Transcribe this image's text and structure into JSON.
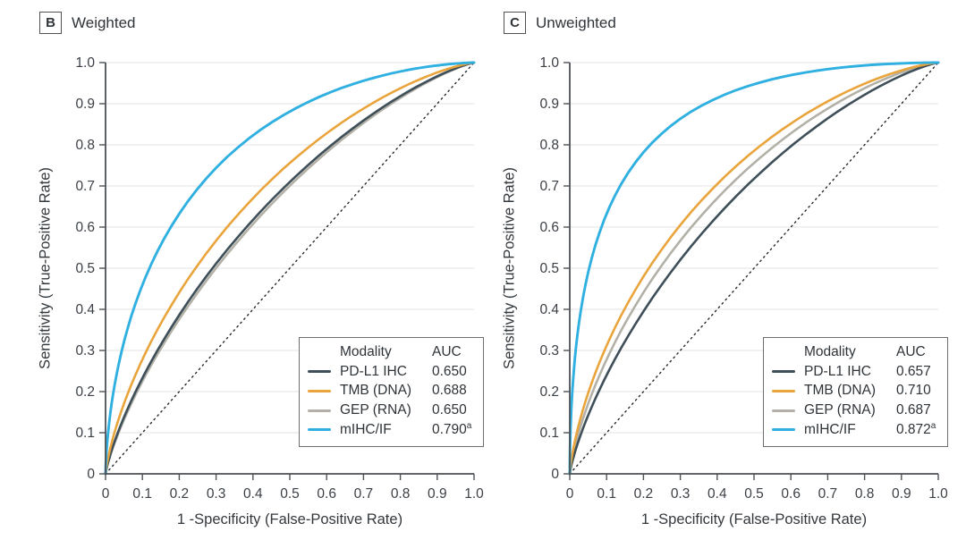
{
  "figure": {
    "background": "#ffffff",
    "theme": {
      "axis_color": "#4d5257",
      "grid_color": "#e3e3e3",
      "tick_label_color": "#3b4046",
      "reference_line_color": "#26282a",
      "text_color": "#33383d"
    }
  },
  "chart_data": [
    {
      "type": "line",
      "subtype": "roc-curve",
      "panel_label": "B",
      "title": "Weighted",
      "xlabel": "1 -Specificity (False-Positive Rate)",
      "ylabel": "Sensitivity (True-Positive Rate)",
      "xlim": [
        0,
        1
      ],
      "ylim": [
        0,
        1
      ],
      "x_ticks": [
        0,
        0.1,
        0.2,
        0.3,
        0.4,
        0.5,
        0.6,
        0.7,
        0.8,
        0.9,
        1.0
      ],
      "x_tick_labels": [
        "0",
        "0.1",
        "0.2",
        "0.3",
        "0.4",
        "0.5",
        "0.6",
        "0.7",
        "0.8",
        "0.9",
        "1.0"
      ],
      "y_ticks": [
        0,
        0.1,
        0.2,
        0.3,
        0.4,
        0.5,
        0.6,
        0.7,
        0.8,
        0.9,
        1.0
      ],
      "y_tick_labels": [
        "0",
        "0.1",
        "0.2",
        "0.3",
        "0.4",
        "0.5",
        "0.6",
        "0.7",
        "0.8",
        "0.9",
        "1.0"
      ],
      "grid": "horizontal-only",
      "diagonal_reference_line": "dotted",
      "legend": {
        "position": "lower-right",
        "headers": {
          "modality": "Modality",
          "auc": "AUC"
        }
      },
      "series": [
        {
          "name": "PD-L1 IHC",
          "auc": 0.65,
          "auc_label": "0.650",
          "auc_superscript": "",
          "color": "#3E4F59",
          "draw_auc": 0.652
        },
        {
          "name": "TMB (DNA)",
          "auc": 0.688,
          "auc_label": "0.688",
          "auc_superscript": "",
          "color": "#E9A43C",
          "draw_auc": 0.688
        },
        {
          "name": "GEP (RNA)",
          "auc": 0.65,
          "auc_label": "0.650",
          "auc_superscript": "",
          "color": "#B3B1A7",
          "draw_auc": 0.645
        },
        {
          "name": "mIHC/IF",
          "auc": 0.79,
          "auc_label": "0.790",
          "auc_superscript": "a",
          "color": "#2FB0E1",
          "draw_auc": 0.798
        }
      ]
    },
    {
      "type": "line",
      "subtype": "roc-curve",
      "panel_label": "C",
      "title": "Unweighted",
      "xlabel": "1 -Specificity (False-Positive Rate)",
      "ylabel": "Sensitivity (True-Positive Rate)",
      "xlim": [
        0,
        1
      ],
      "ylim": [
        0,
        1
      ],
      "x_ticks": [
        0,
        0.1,
        0.2,
        0.3,
        0.4,
        0.5,
        0.6,
        0.7,
        0.8,
        0.9,
        1.0
      ],
      "x_tick_labels": [
        "0",
        "0.1",
        "0.2",
        "0.3",
        "0.4",
        "0.5",
        "0.6",
        "0.7",
        "0.8",
        "0.9",
        "1.0"
      ],
      "y_ticks": [
        0,
        0.1,
        0.2,
        0.3,
        0.4,
        0.5,
        0.6,
        0.7,
        0.8,
        0.9,
        1.0
      ],
      "y_tick_labels": [
        "0",
        "0.1",
        "0.2",
        "0.3",
        "0.4",
        "0.5",
        "0.6",
        "0.7",
        "0.8",
        "0.9",
        "1.0"
      ],
      "grid": "horizontal-only",
      "diagonal_reference_line": "dotted",
      "legend": {
        "position": "lower-right",
        "headers": {
          "modality": "Modality",
          "auc": "AUC"
        }
      },
      "series": [
        {
          "name": "PD-L1 IHC",
          "auc": 0.657,
          "auc_label": "0.657",
          "auc_superscript": "",
          "color": "#3E4F59",
          "draw_auc": 0.658
        },
        {
          "name": "TMB (DNA)",
          "auc": 0.71,
          "auc_label": "0.710",
          "auc_superscript": "",
          "color": "#E9A43C",
          "draw_auc": 0.712
        },
        {
          "name": "GEP (RNA)",
          "auc": 0.687,
          "auc_label": "0.687",
          "auc_superscript": "",
          "color": "#B3B1A7",
          "draw_auc": 0.688
        },
        {
          "name": "mIHC/IF",
          "auc": 0.872,
          "auc_label": "0.872",
          "auc_superscript": "a",
          "color": "#2FB0E1",
          "draw_auc": 0.874
        }
      ]
    }
  ]
}
